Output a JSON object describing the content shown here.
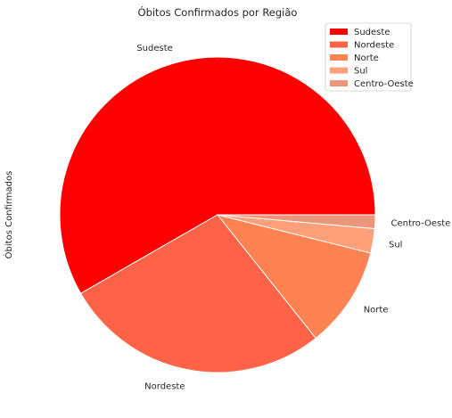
{
  "chart_data": {
    "type": "pie",
    "title": "Óbitos Confirmados por Região",
    "ylabel": "Óbitos Confirmados",
    "categories": [
      "Sudeste",
      "Nordeste",
      "Norte",
      "Sul",
      "Centro-Oeste"
    ],
    "values": [
      58.3,
      27.4,
      10.4,
      2.5,
      1.4
    ],
    "colors": [
      "#ff0000",
      "#ff6347",
      "#ff8352",
      "#ffa07a",
      "#e9967a"
    ],
    "legend_position": "top-right"
  }
}
